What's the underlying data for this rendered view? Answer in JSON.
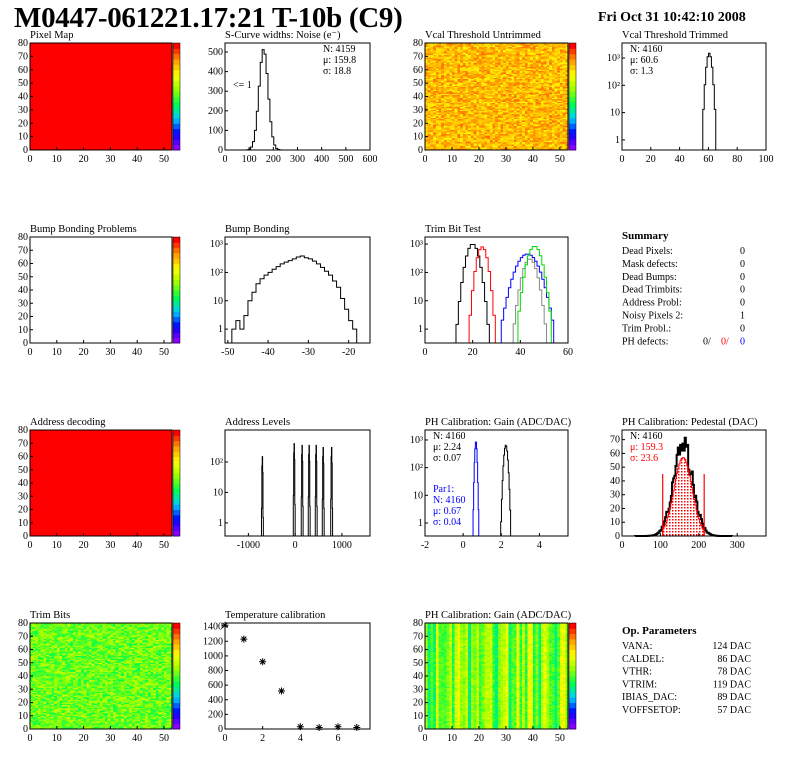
{
  "header": {
    "title": "M0447-061221.17:21 T-10b (C9)",
    "date": "Fri Oct 31 10:42:10 2008"
  },
  "colors": {
    "red": "#ff0000",
    "blue": "#0000ff",
    "green": "#00dd00",
    "grey": "#888888",
    "black": "#000000"
  },
  "chart_data": [
    {
      "id": "pixel_map",
      "type": "heatmap",
      "title": "Pixel Map",
      "xlim": [
        0,
        53
      ],
      "ylim": [
        0,
        80
      ],
      "xticks": [
        0,
        10,
        20,
        30,
        40,
        50
      ],
      "yticks": [
        0,
        10,
        20,
        30,
        40,
        50,
        60,
        70,
        80
      ],
      "fill": "uniform",
      "z": 10,
      "zlim": [
        0,
        10
      ]
    },
    {
      "id": "scurve",
      "type": "hist",
      "title": "S-Curve widths: Noise (e⁻)",
      "xlim": [
        0,
        600
      ],
      "ylim": [
        0,
        546
      ],
      "xticks": [
        0,
        100,
        200,
        300,
        400,
        500,
        600
      ],
      "yticks": [
        0,
        100,
        200,
        300,
        400,
        500
      ],
      "series": [
        {
          "color": "#000000",
          "gauss": {
            "mean": 159.8,
            "sigma": 18.8,
            "peak": 515
          },
          "bin": 8
        }
      ],
      "stats": [
        {
          "t": "N: 4159"
        },
        {
          "t": "μ: 159.8"
        },
        {
          "t": "σ: 18.8"
        }
      ],
      "annotation": "<= 1"
    },
    {
      "id": "vcal_untrimmed",
      "type": "heatmap",
      "title": "Vcal Threshold Untrimmed",
      "xlim": [
        0,
        53
      ],
      "ylim": [
        0,
        80
      ],
      "xticks": [
        0,
        10,
        20,
        30,
        40,
        50
      ],
      "yticks": [
        0,
        10,
        20,
        30,
        40,
        50,
        60,
        70,
        80
      ],
      "fill": "noise",
      "z": 105,
      "zspread": 12,
      "zlim": [
        0,
        130
      ]
    },
    {
      "id": "vcal_trimmed",
      "type": "hist",
      "log": true,
      "title": "Vcal Threshold Trimmed",
      "xlim": [
        0,
        100
      ],
      "ylim": [
        -0.37,
        3.55
      ],
      "xticks": [
        0,
        20,
        40,
        60,
        80,
        100
      ],
      "yticks": [
        "1",
        "10",
        "10²",
        "10³"
      ],
      "series": [
        {
          "color": "#000000",
          "gauss": {
            "mean": 60.6,
            "sigma": 1.3,
            "peak": 1500
          },
          "bin": 1
        }
      ],
      "stats": [
        {
          "t": "N: 4160"
        },
        {
          "t": "μ: 60.6"
        },
        {
          "t": "σ:  1.3"
        }
      ]
    },
    {
      "id": "bump_problems",
      "type": "heatmap",
      "title": "Bump Bonding Problems",
      "xlim": [
        0,
        53
      ],
      "ylim": [
        0,
        80
      ],
      "xticks": [
        0,
        10,
        20,
        30,
        40,
        50
      ],
      "yticks": [
        0,
        10,
        20,
        30,
        40,
        50,
        60,
        70,
        80
      ],
      "fill": "empty",
      "zlim": [
        0,
        1
      ]
    },
    {
      "id": "bump_bonding",
      "type": "hist",
      "log": true,
      "title": "Bump Bonding",
      "xlim": [
        -50.7,
        -14.7
      ],
      "ylim": [
        -0.49,
        3.25
      ],
      "xticks": [
        -50,
        -40,
        -30,
        -20
      ],
      "yticks": [
        "1",
        "10",
        "10²",
        "10³"
      ],
      "series": [
        {
          "color": "#000000",
          "x0": -50,
          "bin": 1,
          "values": [
            0,
            1,
            2,
            1,
            3,
            10,
            20,
            40,
            60,
            80,
            100,
            130,
            160,
            200,
            230,
            260,
            300,
            350,
            380,
            330,
            300,
            250,
            200,
            150,
            110,
            80,
            50,
            30,
            12,
            5,
            2,
            1,
            0
          ]
        }
      ]
    },
    {
      "id": "trim_bit_test",
      "type": "hist",
      "log": true,
      "title": "Trim Bit Test",
      "xlim": [
        0,
        60
      ],
      "ylim": [
        -0.49,
        3.25
      ],
      "xticks": [
        0,
        20,
        40,
        60
      ],
      "yticks": [
        "1",
        "10",
        "10²",
        "10³"
      ],
      "series": [
        {
          "color": "#000000",
          "gauss": {
            "mean": 20,
            "sigma": 1.8,
            "peak": 1000
          },
          "bin": 1
        },
        {
          "color": "#ff0000",
          "gauss": {
            "mean": 24,
            "sigma": 1.5,
            "peak": 800
          },
          "bin": 1
        },
        {
          "color": "#0000ff",
          "gauss": {
            "mean": 43,
            "sigma": 3.2,
            "peak": 450
          },
          "bin": 1
        },
        {
          "color": "#888888",
          "gauss": {
            "mean": 44,
            "sigma": 2,
            "peak": 300
          },
          "bin": 1
        },
        {
          "color": "#00dd00",
          "gauss": {
            "mean": 46,
            "sigma": 2,
            "peak": 850
          },
          "bin": 1
        }
      ]
    },
    {
      "id": "address_decoding",
      "type": "heatmap",
      "title": "Address decoding",
      "xlim": [
        0,
        53
      ],
      "ylim": [
        0,
        80
      ],
      "xticks": [
        0,
        10,
        20,
        30,
        40,
        50
      ],
      "yticks": [
        0,
        10,
        20,
        30,
        40,
        50,
        60,
        70,
        80
      ],
      "fill": "uniform",
      "z": 1,
      "zlim": [
        0,
        1
      ]
    },
    {
      "id": "address_levels",
      "type": "hist",
      "log": true,
      "title": "Address Levels",
      "xlim": [
        -1500,
        1600
      ],
      "ylim": [
        -0.43,
        3.05
      ],
      "xticks": [
        -1000,
        0,
        1000
      ],
      "yticks": [
        "1",
        "10",
        "10²"
      ],
      "series": [
        {
          "color": "#000000",
          "spikes": [
            [
              -700,
              150
            ],
            [
              -20,
              400
            ],
            [
              150,
              350
            ],
            [
              300,
              350
            ],
            [
              450,
              350
            ],
            [
              600,
              300
            ],
            [
              780,
              300
            ]
          ],
          "width": 40
        }
      ]
    },
    {
      "id": "ph_gain",
      "type": "hist",
      "log": true,
      "title": "PH Calibration: Gain (ADC/DAC)",
      "xlim": [
        -2,
        5.5
      ],
      "ylim": [
        -0.47,
        3.36
      ],
      "xticks": [
        -2,
        0,
        2,
        4
      ],
      "yticks": [
        "1",
        "10",
        "10²",
        "10³"
      ],
      "series": [
        {
          "color": "#000000",
          "gauss": {
            "mean": 2.24,
            "sigma": 0.07,
            "peak": 650
          },
          "bin": 0.04
        },
        {
          "color": "#0000ff",
          "gauss": {
            "mean": 0.67,
            "sigma": 0.04,
            "peak": 900
          },
          "bin": 0.03,
          "full": true
        }
      ],
      "stats": [
        {
          "t": "N: 4160"
        },
        {
          "t": "μ: 2.24"
        },
        {
          "t": "σ: 0.07"
        }
      ],
      "stats2": [
        {
          "t": "Par1:"
        },
        {
          "t": "N: 4160"
        },
        {
          "t": "μ: 0.67"
        },
        {
          "t": "σ: 0.04"
        }
      ]
    },
    {
      "id": "ph_pedestal",
      "type": "hist",
      "title": "PH Calibration: Pedestal (DAC)",
      "xlim": [
        0,
        375
      ],
      "ylim": [
        0,
        77
      ],
      "xticks": [
        0,
        100,
        200,
        300
      ],
      "yticks": [
        0,
        10,
        20,
        30,
        40,
        50,
        60,
        70
      ],
      "series": [
        {
          "color": "#000000",
          "gauss": {
            "mean": 159.3,
            "sigma": 25,
            "peak": 66
          },
          "bin": 3,
          "noise": true
        },
        {
          "color": "#ff0000",
          "gauss": {
            "mean": 159.3,
            "sigma": 23.6,
            "peak": 57
          },
          "bin": 3,
          "range": [
            106,
            214
          ],
          "filled": true
        }
      ],
      "lines": [
        {
          "x": 106,
          "y": 45
        },
        {
          "x": 214,
          "y": 45
        }
      ],
      "stats": [
        {
          "t": "N: 4160",
          "c": "#000000"
        },
        {
          "t": "μ: 159.3",
          "c": "#ff0000"
        },
        {
          "t": "σ: 23.6",
          "c": "#ff0000"
        }
      ]
    },
    {
      "id": "trim_bits",
      "type": "heatmap",
      "title": "Trim Bits",
      "xlim": [
        0,
        53
      ],
      "ylim": [
        0,
        80
      ],
      "xticks": [
        0,
        10,
        20,
        30,
        40,
        50
      ],
      "yticks": [
        0,
        10,
        20,
        30,
        40,
        50,
        60,
        70,
        80
      ],
      "fill": "noise",
      "z": 8.5,
      "zspread": 1.6,
      "zlim": [
        0,
        16
      ]
    },
    {
      "id": "temperature",
      "type": "scatter",
      "title": "Temperature calibration",
      "xlim": [
        0,
        7.7
      ],
      "ylim": [
        0,
        1450
      ],
      "xticks": [
        0,
        2,
        4,
        6
      ],
      "yticks": [
        0,
        200,
        400,
        600,
        800,
        1000,
        1200,
        1400
      ],
      "points": [
        [
          0,
          1420
        ],
        [
          1,
          1230
        ],
        [
          2,
          920
        ],
        [
          3,
          520
        ],
        [
          4,
          30
        ],
        [
          5,
          20
        ],
        [
          6,
          30
        ],
        [
          7,
          20
        ]
      ]
    },
    {
      "id": "ph_gain_map",
      "type": "heatmap",
      "title": "PH Calibration: Gain (ADC/DAC)",
      "xlim": [
        0,
        53
      ],
      "ylim": [
        0,
        80
      ],
      "xticks": [
        0,
        10,
        20,
        30,
        40,
        50
      ],
      "yticks": [
        0,
        10,
        20,
        30,
        40,
        50,
        60,
        70,
        80
      ],
      "fill": "columns",
      "z": 2.0,
      "zspread": 0.12,
      "zlim": [
        1.4,
        2.5
      ]
    }
  ],
  "summary": {
    "title": "Summary",
    "rows": [
      {
        "label": "Dead Pixels:",
        "value": "0"
      },
      {
        "label": "Mask defects:",
        "value": "0"
      },
      {
        "label": "Dead Bumps:",
        "value": "0"
      },
      {
        "label": "Dead Trimbits:",
        "value": "0"
      },
      {
        "label": "Address Probl:",
        "value": "0"
      },
      {
        "label": "Noisy Pixels 2:",
        "value": "1"
      },
      {
        "label": "Trim Probl.:",
        "value": "0"
      }
    ],
    "ph_defects": {
      "label": "PH defects:",
      "v1": "0/",
      "v2": "0/",
      "v3": "0"
    }
  },
  "op_params": {
    "title": "Op. Parameters",
    "rows": [
      {
        "label": "VANA:",
        "value": "124 DAC"
      },
      {
        "label": "CALDEL:",
        "value": "86 DAC"
      },
      {
        "label": "VTHR:",
        "value": "78 DAC"
      },
      {
        "label": "VTRIM:",
        "value": "119 DAC"
      },
      {
        "label": "IBIAS_DAC:",
        "value": "89 DAC"
      },
      {
        "label": "VOFFSETOP:",
        "value": "57 DAC"
      }
    ]
  }
}
